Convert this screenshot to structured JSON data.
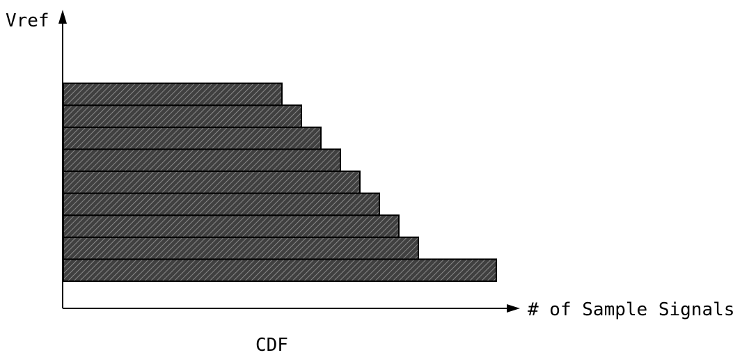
{
  "chart_data": {
    "type": "bar",
    "orientation": "horizontal",
    "title": "CDF",
    "xlabel": "# of Sample Signals",
    "ylabel": "Vref",
    "values": [
      622,
      510,
      482,
      454,
      426,
      398,
      370,
      342,
      314
    ],
    "bar_fill": "#404040",
    "bar_stroke": "#000000",
    "hatch_color": "#9a9a9a",
    "grid": false,
    "legend": "none"
  }
}
